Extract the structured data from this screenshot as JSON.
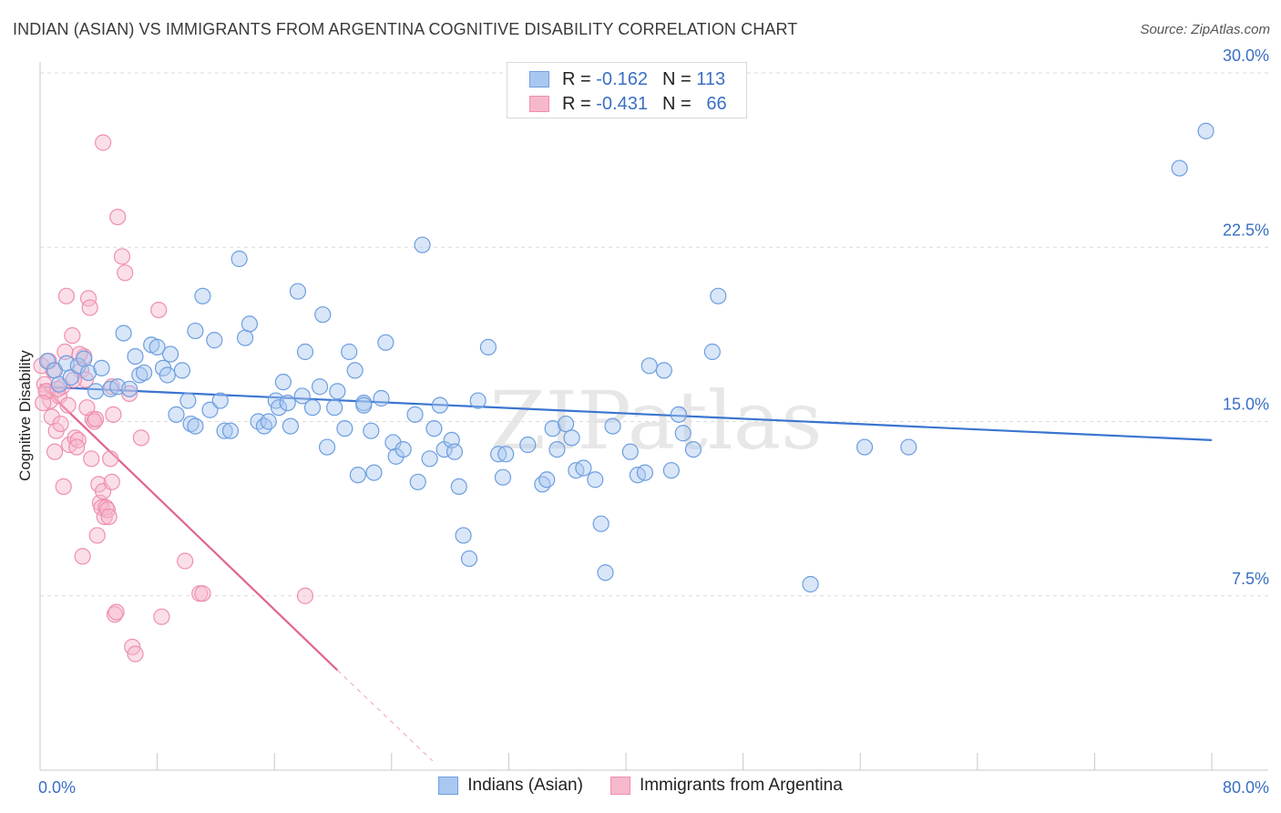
{
  "title": "INDIAN (ASIAN) VS IMMIGRANTS FROM ARGENTINA COGNITIVE DISABILITY CORRELATION CHART",
  "source": "Source: ZipAtlas.com",
  "watermark": "ZIPatlas",
  "legend": {
    "series1": {
      "r_label": "R =",
      "r_value": "-0.162",
      "n_label": "N =",
      "n_value": "113"
    },
    "series2": {
      "r_label": "R =",
      "r_value": "-0.431",
      "n_label": "N =",
      "n_value": "66"
    }
  },
  "colors": {
    "blue_fill": "#a9c8f0",
    "blue_stroke": "#6d9ee0",
    "blue_line": "#3a74d0",
    "pink_fill": "#f6b8cb",
    "pink_stroke": "#ef8fae",
    "pink_line": "#e0648f",
    "tick_label": "#3a6fc4",
    "grid": "#dcdcdc"
  },
  "chart_data": {
    "type": "scatter",
    "xlabel": "",
    "ylabel": "Cognitive Disability",
    "xlim": [
      0,
      80
    ],
    "ylim": [
      0,
      30
    ],
    "x_tick_labels": [
      "0.0%",
      "80.0%"
    ],
    "y_ticks": [
      7.5,
      15.0,
      22.5,
      30.0
    ],
    "y_tick_labels": [
      "7.5%",
      "15.0%",
      "22.5%",
      "30.0%"
    ],
    "grid": "horizontal dashed",
    "legend_position": "top-center and bottom",
    "series": [
      {
        "name": "Indians (Asian)",
        "color": "#6d9ee0",
        "trend": {
          "x": [
            0,
            80
          ],
          "y": [
            16.5,
            14.2
          ]
        },
        "points": [
          [
            0.5,
            17.6
          ],
          [
            1,
            17.2
          ],
          [
            1.3,
            16.6
          ],
          [
            1.8,
            17.5
          ],
          [
            2.1,
            16.9
          ],
          [
            2.6,
            17.4
          ],
          [
            3.0,
            17.7
          ],
          [
            3.3,
            17.1
          ],
          [
            3.8,
            16.3
          ],
          [
            4.2,
            17.3
          ],
          [
            4.8,
            16.4
          ],
          [
            5.3,
            16.5
          ],
          [
            5.7,
            18.8
          ],
          [
            6.1,
            16.4
          ],
          [
            6.5,
            17.8
          ],
          [
            6.8,
            17.0
          ],
          [
            7.1,
            17.1
          ],
          [
            7.6,
            18.3
          ],
          [
            8.0,
            18.2
          ],
          [
            8.4,
            17.3
          ],
          [
            8.7,
            17.0
          ],
          [
            8.9,
            17.9
          ],
          [
            9.3,
            15.3
          ],
          [
            9.7,
            17.2
          ],
          [
            10.1,
            15.9
          ],
          [
            10.3,
            14.9
          ],
          [
            10.6,
            18.9
          ],
          [
            11.1,
            20.4
          ],
          [
            11.6,
            15.5
          ],
          [
            11.9,
            18.5
          ],
          [
            12.3,
            15.9
          ],
          [
            12.6,
            14.6
          ],
          [
            13.0,
            14.6
          ],
          [
            13.6,
            22.0
          ],
          [
            14.0,
            18.6
          ],
          [
            14.3,
            19.2
          ],
          [
            14.9,
            15.0
          ],
          [
            15.3,
            14.8
          ],
          [
            15.6,
            15.0
          ],
          [
            16.1,
            15.9
          ],
          [
            16.3,
            15.6
          ],
          [
            16.6,
            16.7
          ],
          [
            17.1,
            14.8
          ],
          [
            17.6,
            20.6
          ],
          [
            17.9,
            16.1
          ],
          [
            18.1,
            18.0
          ],
          [
            18.6,
            15.6
          ],
          [
            19.1,
            16.5
          ],
          [
            19.3,
            19.6
          ],
          [
            19.6,
            13.9
          ],
          [
            20.3,
            16.3
          ],
          [
            20.8,
            14.7
          ],
          [
            21.1,
            18.0
          ],
          [
            21.5,
            17.2
          ],
          [
            21.7,
            12.7
          ],
          [
            22.1,
            15.8
          ],
          [
            22.6,
            14.6
          ],
          [
            22.8,
            12.8
          ],
          [
            23.3,
            16.0
          ],
          [
            23.6,
            18.4
          ],
          [
            24.1,
            14.1
          ],
          [
            24.3,
            13.5
          ],
          [
            24.8,
            13.8
          ],
          [
            25.6,
            15.3
          ],
          [
            25.8,
            12.4
          ],
          [
            26.1,
            22.6
          ],
          [
            26.6,
            13.4
          ],
          [
            26.9,
            14.7
          ],
          [
            27.3,
            15.7
          ],
          [
            27.6,
            13.8
          ],
          [
            28.1,
            14.2
          ],
          [
            28.3,
            13.7
          ],
          [
            28.6,
            12.2
          ],
          [
            28.9,
            10.1
          ],
          [
            29.3,
            9.1
          ],
          [
            29.9,
            15.9
          ],
          [
            30.6,
            18.2
          ],
          [
            31.3,
            13.6
          ],
          [
            31.6,
            12.6
          ],
          [
            31.8,
            13.6
          ],
          [
            33.3,
            14.0
          ],
          [
            34.3,
            12.3
          ],
          [
            34.6,
            12.5
          ],
          [
            35.0,
            14.7
          ],
          [
            35.3,
            13.8
          ],
          [
            35.9,
            14.9
          ],
          [
            36.3,
            14.3
          ],
          [
            36.6,
            12.9
          ],
          [
            37.1,
            13.0
          ],
          [
            37.9,
            12.5
          ],
          [
            38.3,
            10.6
          ],
          [
            38.6,
            8.5
          ],
          [
            39.1,
            14.8
          ],
          [
            40.3,
            13.7
          ],
          [
            40.8,
            12.7
          ],
          [
            41.3,
            12.8
          ],
          [
            41.6,
            17.4
          ],
          [
            42.6,
            17.2
          ],
          [
            43.1,
            12.9
          ],
          [
            43.6,
            15.3
          ],
          [
            43.9,
            14.5
          ],
          [
            44.6,
            13.8
          ],
          [
            45.9,
            18.0
          ],
          [
            46.3,
            20.4
          ],
          [
            52.6,
            8.0
          ],
          [
            56.3,
            13.9
          ],
          [
            59.3,
            13.9
          ],
          [
            77.8,
            25.9
          ],
          [
            79.6,
            27.5
          ],
          [
            22.1,
            15.7
          ],
          [
            20.1,
            15.6
          ],
          [
            10.6,
            14.8
          ],
          [
            16.9,
            15.8
          ]
        ]
      },
      {
        "name": "Immigrants from Argentina",
        "color": "#ef8fae",
        "trend": {
          "x": [
            0,
            20.3
          ],
          "y": [
            16.6,
            4.3
          ],
          "dash_to": {
            "x": 26.8,
            "y": 0.4
          }
        },
        "points": [
          [
            0.1,
            17.4
          ],
          [
            0.3,
            16.6
          ],
          [
            0.5,
            16.3
          ],
          [
            0.7,
            15.9
          ],
          [
            0.8,
            15.2
          ],
          [
            0.9,
            17.2
          ],
          [
            1.0,
            13.7
          ],
          [
            1.1,
            14.6
          ],
          [
            1.3,
            16.1
          ],
          [
            1.5,
            16.5
          ],
          [
            1.6,
            12.2
          ],
          [
            1.8,
            20.4
          ],
          [
            2.0,
            14.0
          ],
          [
            2.2,
            18.7
          ],
          [
            2.4,
            14.3
          ],
          [
            2.6,
            14.2
          ],
          [
            2.8,
            17.2
          ],
          [
            2.9,
            9.2
          ],
          [
            3.0,
            17.8
          ],
          [
            3.1,
            16.8
          ],
          [
            3.3,
            20.3
          ],
          [
            3.4,
            19.9
          ],
          [
            3.5,
            13.4
          ],
          [
            3.6,
            15.1
          ],
          [
            3.7,
            15.0
          ],
          [
            3.8,
            15.1
          ],
          [
            3.9,
            10.1
          ],
          [
            4.0,
            12.3
          ],
          [
            4.1,
            11.5
          ],
          [
            4.2,
            11.3
          ],
          [
            4.3,
            12.0
          ],
          [
            4.4,
            10.9
          ],
          [
            4.5,
            11.3
          ],
          [
            4.6,
            11.2
          ],
          [
            4.7,
            10.9
          ],
          [
            4.8,
            13.4
          ],
          [
            4.9,
            12.4
          ],
          [
            5.0,
            15.3
          ],
          [
            5.1,
            6.7
          ],
          [
            5.2,
            6.8
          ],
          [
            4.3,
            27.0
          ],
          [
            5.3,
            23.8
          ],
          [
            5.6,
            22.1
          ],
          [
            5.8,
            21.4
          ],
          [
            6.1,
            16.2
          ],
          [
            6.3,
            5.3
          ],
          [
            6.5,
            5.0
          ],
          [
            6.9,
            14.3
          ],
          [
            8.1,
            19.8
          ],
          [
            8.3,
            6.6
          ],
          [
            9.9,
            9.0
          ],
          [
            10.9,
            7.6
          ],
          [
            11.1,
            7.6
          ],
          [
            18.1,
            7.5
          ],
          [
            0.4,
            16.3
          ],
          [
            1.2,
            16.4
          ],
          [
            2.3,
            16.8
          ],
          [
            0.6,
            17.6
          ],
          [
            2.7,
            17.9
          ],
          [
            1.9,
            15.7
          ],
          [
            3.2,
            15.6
          ],
          [
            4.9,
            16.5
          ],
          [
            1.4,
            14.9
          ],
          [
            2.5,
            13.9
          ],
          [
            0.2,
            15.8
          ],
          [
            1.7,
            18.0
          ]
        ]
      }
    ]
  }
}
